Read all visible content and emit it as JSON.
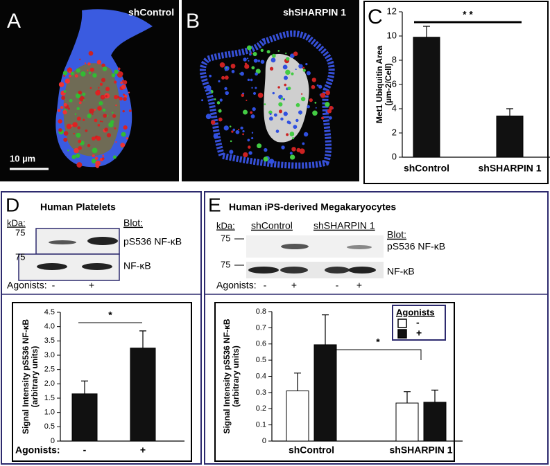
{
  "panels": {
    "A": {
      "letter": "A",
      "label": "shControl",
      "scale_bar": "10 µm"
    },
    "B": {
      "letter": "B",
      "label": "shSHARPIN 1"
    },
    "C": {
      "letter": "C"
    },
    "D": {
      "letter": "D",
      "title": "Human Platelets",
      "kda": "kDa:",
      "markers": [
        "75",
        "75"
      ],
      "blot_heading": "Blot:",
      "blots": [
        "pS536 NF-κB",
        "NF-κB"
      ],
      "agonists": "Agonists:",
      "lanes": [
        "-",
        "+"
      ]
    },
    "E": {
      "letter": "E",
      "title": "Human iPS-derived Megakaryocytes",
      "kda": "kDa:",
      "groups": [
        "shControl",
        "shSHARPIN 1"
      ],
      "markers": [
        "75",
        "75"
      ],
      "blot_heading": "Blot:",
      "blots": [
        "pS536 NF-κB",
        "NF-κB"
      ],
      "agonists": "Agonists:",
      "lanes": [
        "-",
        "+",
        "-",
        "+"
      ]
    }
  },
  "chart_data": [
    {
      "type": "bar",
      "y_label": [
        "Met1 Ubiquitin Area",
        "(µm-2/Cell)"
      ],
      "categories": [
        "shControl",
        "shSHARPIN 1"
      ],
      "values": [
        9.9,
        3.4
      ],
      "errors": [
        0.9,
        0.6
      ],
      "color": "#111111",
      "ylim": [
        0,
        12
      ],
      "yticks": [
        0,
        2,
        4,
        6,
        8,
        10,
        12
      ],
      "annotation": "* *"
    },
    {
      "type": "bar",
      "y_label": [
        "Signal Intensity pS536 NF-κB",
        "(arbitrary units)"
      ],
      "x_label": "Agonists:",
      "categories": [
        "-",
        "+"
      ],
      "values": [
        1.65,
        3.25
      ],
      "errors": [
        0.45,
        0.6
      ],
      "color": "#111111",
      "ylim": [
        0,
        4.5
      ],
      "yticks": [
        0,
        0.5,
        {
          "value": 1,
          "label": "1.0"
        },
        1.5,
        {
          "value": 2,
          "label": "2.0"
        },
        2.5,
        {
          "value": 3,
          "label": "3.0"
        },
        3.5,
        {
          "value": 4,
          "label": "4.0"
        },
        4.5
      ],
      "annotation": "*"
    },
    {
      "type": "grouped-bar",
      "y_label": [
        "Signal Intensity pS536 NF-κB",
        "(arbitrary units)"
      ],
      "categories": [
        "shControl",
        "shSHARPIN 1"
      ],
      "legend_title": "Agonists",
      "series": [
        {
          "name": "-",
          "color": "#ffffff",
          "values": [
            0.31,
            0.235
          ],
          "errors": [
            0.11,
            0.07
          ]
        },
        {
          "name": "+",
          "color": "#111111",
          "values": [
            0.595,
            0.24
          ],
          "errors": [
            0.185,
            0.075
          ]
        }
      ],
      "ylim": [
        0,
        0.8
      ],
      "yticks": [
        0,
        0.1,
        0.2,
        0.3,
        0.4,
        0.5,
        0.6,
        0.7,
        0.8
      ],
      "annotation": "*"
    }
  ]
}
